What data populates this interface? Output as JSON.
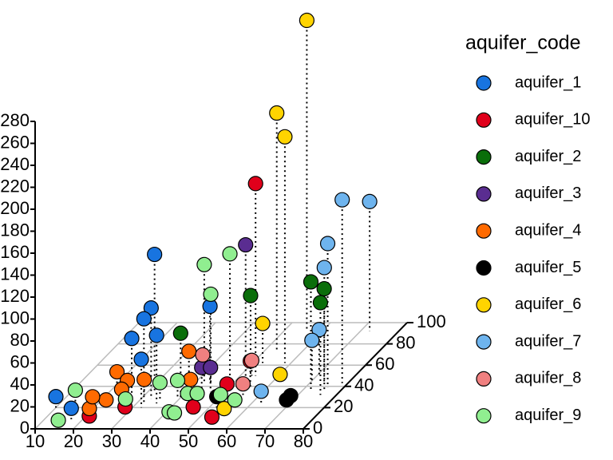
{
  "chart_data": {
    "type": "scatter3d",
    "legend_title": "aquifer_code",
    "xlim": [
      10,
      80
    ],
    "xticks": [
      10,
      20,
      30,
      40,
      50,
      60,
      70,
      80
    ],
    "ylim": [
      0,
      100
    ],
    "yticks": [
      0,
      20,
      40,
      60,
      80,
      100
    ],
    "zlim": [
      0,
      280
    ],
    "zticks": [
      0,
      20,
      40,
      60,
      80,
      100,
      120,
      140,
      160,
      180,
      200,
      220,
      240,
      260,
      280
    ],
    "grid": true,
    "series": [
      {
        "name": "aquifer_1",
        "color": "#1874e0",
        "x": [
          31.7,
          32.7,
          31.9,
          35.2,
          29.8,
          32.3,
          44,
          10,
          17
        ],
        "y": [
          35,
          28,
          24,
          24,
          20,
          20,
          43,
          20,
          9
        ],
        "z": [
          125,
          83,
          77,
          62,
          63,
          44,
          70,
          10,
          10
        ]
      },
      {
        "name": "aquifer_10",
        "color": "#e0001b",
        "x": [
          54,
          55.6,
          50.6,
          53.7,
          46.8,
          29,
          21.7
        ],
        "y": [
          50,
          39,
          35,
          9,
          16.5,
          16.5,
          9
        ],
        "z": [
          175,
          24,
          7,
          2,
          4,
          4,
          3
        ]
      },
      {
        "name": "aquifer_2",
        "color": "#0a6e0a",
        "x": [
          72.5,
          73.8,
          75.8,
          52.7,
          40.4
        ],
        "y": [
          35,
          43,
          32,
          50,
          28
        ],
        "z": [
          100,
          86,
          84,
          73,
          60
        ]
      },
      {
        "name": "aquifer_3",
        "color": "#5a2d91",
        "x": [
          53.3,
          44,
          46.3
        ],
        "y": [
          43,
          35,
          35
        ],
        "z": [
          126,
          22,
          22
        ]
      },
      {
        "name": "aquifer_4",
        "color": "#ff6a00",
        "x": [
          22.7,
          26.5,
          23.1,
          20.1,
          18.5,
          29.8,
          38.5,
          41.9,
          25
        ],
        "y": [
          32,
          28,
          20,
          15,
          24,
          32,
          43,
          32,
          28
        ],
        "z": [
          21,
          17,
          7,
          4,
          6,
          14,
          29,
          14,
          9
        ]
      },
      {
        "name": "aquifer_5",
        "color": "#000000",
        "x": [
          52,
          70.2,
          70.2
        ],
        "y": [
          20,
          24,
          20
        ],
        "z": [
          10,
          7,
          7
        ]
      },
      {
        "name": "aquifer_6",
        "color": "#ffd400",
        "x": [
          56,
          53.3,
          58.4,
          52.6,
          62.3,
          55
        ],
        "y": [
          92,
          73,
          62,
          62,
          43,
          16
        ],
        "z": [
          283,
          217,
          206,
          36,
          8,
          3
        ]
      },
      {
        "name": "aquifer_7",
        "color": "#6eb4ee",
        "x": [
          78.5,
          72.4,
          75.8,
          76,
          70.6,
          70.6,
          62.5
        ],
        "y": [
          43,
          92,
          39,
          35,
          50,
          43,
          24
        ],
        "z": [
          167,
          118,
          131,
          113,
          42,
          39,
          11
        ]
      },
      {
        "name": "aquifer_8",
        "color": "#f08080",
        "x": [
          40.2,
          53,
          55.6
        ],
        "y": [
          50,
          50,
          32
        ],
        "z": [
          19,
          14,
          10
        ]
      },
      {
        "name": "aquifer_9",
        "color": "#90ee90",
        "x": [
          42.5,
          47.3,
          44.2,
          14,
          14.7,
          35,
          39.6,
          43.3,
          40.9,
          45.8,
          51.9,
          56.7,
          27.1,
          42.3
        ],
        "y": [
          43,
          50,
          43,
          24,
          5,
          28,
          28,
          24,
          15,
          24,
          24,
          20,
          24,
          15
        ],
        "z": [
          108,
          111,
          81,
          12,
          3,
          15,
          17,
          9,
          1,
          9,
          8,
          7,
          4,
          0
        ]
      }
    ]
  }
}
